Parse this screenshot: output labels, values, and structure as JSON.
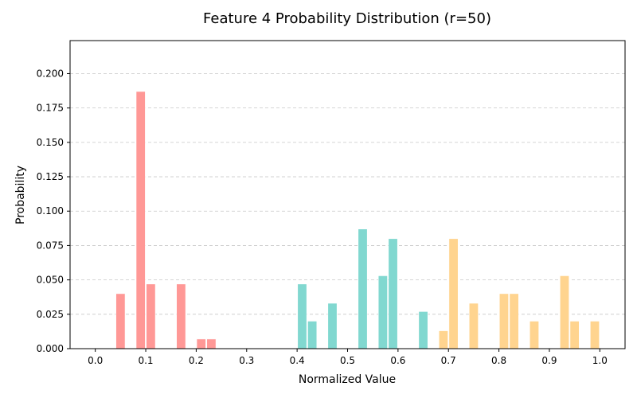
{
  "chart_data": {
    "type": "bar",
    "title": "Feature 4 Probability Distribution (r=50)",
    "xlabel": "Normalized Value",
    "ylabel": "Probability",
    "xlim": [
      -0.05,
      1.05
    ],
    "ylim": [
      0,
      0.224
    ],
    "xticks": [
      0.0,
      0.1,
      0.2,
      0.3,
      0.4,
      0.5,
      0.6,
      0.7,
      0.8,
      0.9,
      1.0
    ],
    "xtick_labels": [
      "0.0",
      "0.1",
      "0.2",
      "0.3",
      "0.4",
      "0.5",
      "0.6",
      "0.7",
      "0.8",
      "0.9",
      "1.0"
    ],
    "yticks": [
      0.0,
      0.025,
      0.05,
      0.075,
      0.1,
      0.125,
      0.15,
      0.175,
      0.2
    ],
    "ytick_labels": [
      "0.000",
      "0.025",
      "0.050",
      "0.075",
      "0.100",
      "0.125",
      "0.150",
      "0.175",
      "0.200"
    ],
    "bar_width": 0.018,
    "grid": "y-dashed",
    "groups": [
      {
        "color": "#ff9896",
        "x": [
          0.05,
          0.09,
          0.11,
          0.17,
          0.21,
          0.23
        ],
        "values": [
          0.04,
          0.187,
          0.047,
          0.047,
          0.007,
          0.007
        ]
      },
      {
        "color": "#81d8d0",
        "x": [
          0.41,
          0.43,
          0.47,
          0.53,
          0.57,
          0.59,
          0.65
        ],
        "values": [
          0.047,
          0.02,
          0.033,
          0.087,
          0.053,
          0.08,
          0.027
        ]
      },
      {
        "color": "#ffd48f",
        "x": [
          0.69,
          0.71,
          0.75,
          0.81,
          0.83,
          0.87,
          0.93,
          0.95,
          0.99
        ],
        "values": [
          0.013,
          0.08,
          0.033,
          0.04,
          0.04,
          0.02,
          0.053,
          0.02,
          0.02
        ]
      }
    ]
  }
}
